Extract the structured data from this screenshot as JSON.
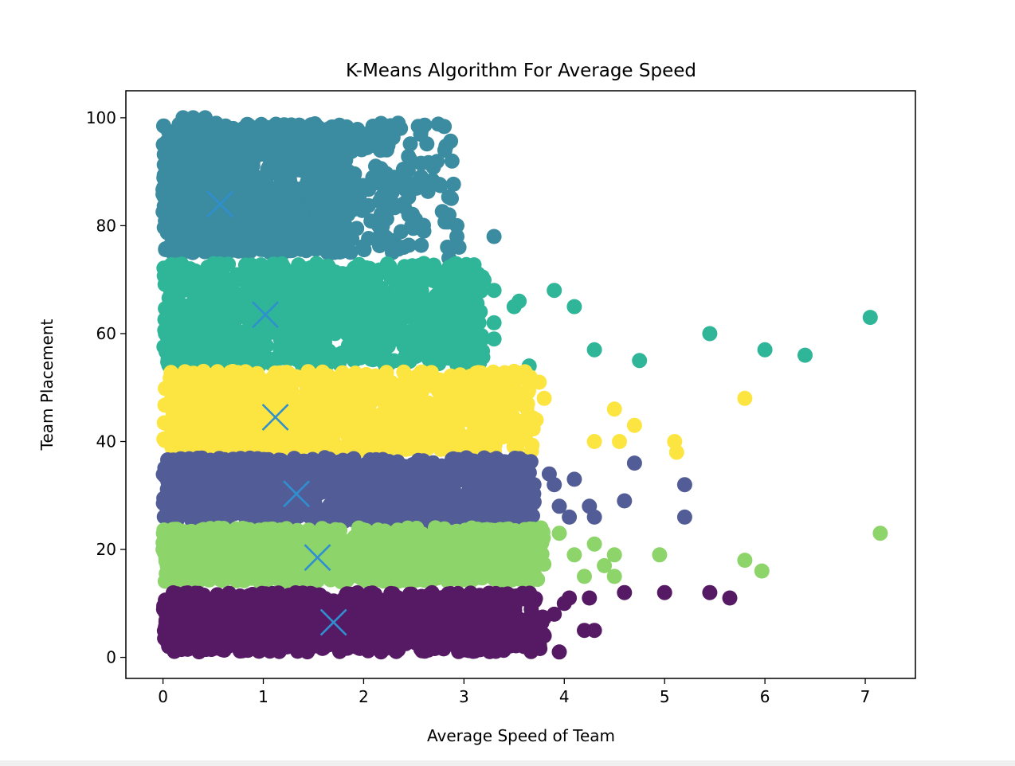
{
  "chart_data": {
    "type": "scatter",
    "title": "K-Means Algorithm For Average Speed",
    "xlabel": "Average Speed of Team",
    "ylabel": "Team Placement",
    "xlim": [
      -0.37,
      7.5
    ],
    "ylim": [
      -3.9,
      105
    ],
    "x_ticks": [
      0,
      1,
      2,
      3,
      4,
      5,
      6,
      7
    ],
    "y_ticks": [
      0,
      20,
      40,
      60,
      80,
      100
    ],
    "grid": false,
    "legend": "none",
    "centroid_color": "#2f8fcf",
    "series": [
      {
        "color": "#3b8ba1",
        "band_y": [
          75,
          99
        ],
        "dense_x_max": 1.8,
        "sparse_x_max": 2.9,
        "points": [
          [
            0.2,
            100
          ],
          [
            0.3,
            100
          ],
          [
            0.42,
            100
          ],
          [
            0.45,
            98
          ],
          [
            0.55,
            97
          ],
          [
            0.7,
            98
          ],
          [
            0.8,
            98
          ],
          [
            0.95,
            95
          ],
          [
            1.05,
            93
          ],
          [
            1.3,
            93
          ],
          [
            1.4,
            91
          ],
          [
            1.55,
            89
          ],
          [
            1.85,
            88
          ],
          [
            1.95,
            87
          ],
          [
            2.0,
            83
          ],
          [
            2.15,
            80
          ],
          [
            2.3,
            76
          ],
          [
            2.4,
            76
          ],
          [
            2.45,
            82
          ],
          [
            2.6,
            79
          ],
          [
            2.85,
            82
          ],
          [
            2.93,
            80
          ],
          [
            2.93,
            78
          ],
          [
            2.95,
            76
          ],
          [
            2.85,
            74
          ],
          [
            3.3,
            78
          ]
        ]
      },
      {
        "color": "#2fb597",
        "band_y": [
          54,
          73
        ],
        "dense_x_max": 2.9,
        "sparse_x_max": 3.2,
        "points": [
          [
            2.6,
            73
          ],
          [
            2.9,
            71
          ],
          [
            3.0,
            69
          ],
          [
            3.3,
            68
          ],
          [
            3.5,
            65
          ],
          [
            3.55,
            66
          ],
          [
            3.9,
            68
          ],
          [
            4.1,
            65
          ],
          [
            3.3,
            62
          ],
          [
            3.15,
            62
          ],
          [
            3.3,
            59
          ],
          [
            3.65,
            54
          ],
          [
            4.3,
            57
          ],
          [
            4.75,
            55
          ],
          [
            5.45,
            60
          ],
          [
            6.0,
            57
          ],
          [
            6.4,
            56
          ],
          [
            7.05,
            63
          ]
        ]
      },
      {
        "color": "#fde541",
        "band_y": [
          38,
          53
        ],
        "dense_x_max": 3.1,
        "sparse_x_max": 3.7,
        "points": [
          [
            3.5,
            53
          ],
          [
            3.75,
            51
          ],
          [
            3.8,
            48
          ],
          [
            3.72,
            44
          ],
          [
            3.55,
            47
          ],
          [
            4.5,
            46
          ],
          [
            4.7,
            43
          ],
          [
            4.3,
            40
          ],
          [
            4.55,
            40
          ],
          [
            5.1,
            40
          ],
          [
            5.12,
            38
          ],
          [
            5.8,
            48
          ]
        ]
      },
      {
        "color": "#525d97",
        "band_y": [
          25,
          37
        ],
        "dense_x_max": 3.2,
        "sparse_x_max": 3.7,
        "points": [
          [
            3.85,
            34
          ],
          [
            3.9,
            32
          ],
          [
            4.1,
            33
          ],
          [
            4.25,
            28
          ],
          [
            4.3,
            26
          ],
          [
            4.05,
            26
          ],
          [
            3.95,
            28
          ],
          [
            4.6,
            29
          ],
          [
            4.7,
            36
          ],
          [
            5.2,
            32
          ],
          [
            5.2,
            26
          ]
        ]
      },
      {
        "color": "#8dd46a",
        "band_y": [
          14,
          24
        ],
        "dense_x_max": 3.3,
        "sparse_x_max": 3.8,
        "points": [
          [
            0.0,
            20
          ],
          [
            0.15,
            14
          ],
          [
            3.95,
            23
          ],
          [
            4.1,
            19
          ],
          [
            4.2,
            15
          ],
          [
            4.3,
            21
          ],
          [
            4.4,
            17
          ],
          [
            4.5,
            19
          ],
          [
            4.5,
            15
          ],
          [
            4.95,
            19
          ],
          [
            5.8,
            18
          ],
          [
            5.97,
            16
          ],
          [
            7.15,
            23
          ]
        ]
      },
      {
        "color": "#561a65",
        "band_y": [
          1,
          12
        ],
        "dense_x_max": 3.3,
        "sparse_x_max": 3.8,
        "points": [
          [
            0.15,
            7
          ],
          [
            0.3,
            3
          ],
          [
            0.28,
            9
          ],
          [
            3.6,
            2
          ],
          [
            3.8,
            4
          ],
          [
            3.95,
            1
          ],
          [
            4.0,
            10
          ],
          [
            4.05,
            11
          ],
          [
            4.25,
            11
          ],
          [
            4.2,
            5
          ],
          [
            4.3,
            5
          ],
          [
            3.9,
            8
          ],
          [
            4.6,
            12
          ],
          [
            5.0,
            12
          ],
          [
            5.45,
            12
          ],
          [
            5.65,
            11
          ]
        ]
      }
    ],
    "centroids": [
      [
        0.57,
        84.0
      ],
      [
        1.02,
        63.5
      ],
      [
        1.12,
        44.5
      ],
      [
        1.33,
        30.3
      ],
      [
        1.54,
        18.5
      ],
      [
        1.7,
        6.5
      ]
    ]
  }
}
